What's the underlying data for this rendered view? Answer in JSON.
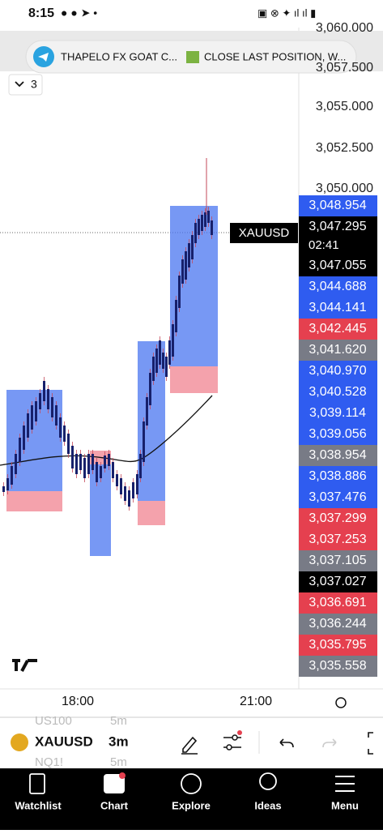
{
  "status_bar": {
    "time": "8:15"
  },
  "notification": {
    "sender": "THAPELO FX GOAT C...",
    "message": "CLOSE LAST POSITION, W..."
  },
  "indicator_toggle": {
    "count": "3"
  },
  "price_axis": {
    "labels": [
      "3,060.000",
      "3,057.500",
      "3,055.000",
      "3,052.500",
      "3,050.000"
    ]
  },
  "symbol_label": "XAUUSD",
  "countdown": "02:41",
  "price_tags": [
    {
      "label": "3,048.954",
      "color": "#2f5cf0"
    },
    {
      "label": "3,047.295",
      "color": "#000000"
    },
    {
      "label": "3,047.055",
      "color": "#000000"
    },
    {
      "label": "3,044.688",
      "color": "#2f5cf0"
    },
    {
      "label": "3,044.141",
      "color": "#2f5cf0"
    },
    {
      "label": "3,042.445",
      "color": "#e5404f"
    },
    {
      "label": "3,041.620",
      "color": "#787b86"
    },
    {
      "label": "3,040.970",
      "color": "#2f5cf0"
    },
    {
      "label": "3,040.528",
      "color": "#2f5cf0"
    },
    {
      "label": "3,039.114",
      "color": "#2f5cf0"
    },
    {
      "label": "3,039.056",
      "color": "#2f5cf0"
    },
    {
      "label": "3,038.954",
      "color": "#787b86"
    },
    {
      "label": "3,038.886",
      "color": "#2f5cf0"
    },
    {
      "label": "3,037.476",
      "color": "#2f5cf0"
    },
    {
      "label": "3,037.299",
      "color": "#e5404f"
    },
    {
      "label": "3,037.253",
      "color": "#e5404f"
    },
    {
      "label": "3,037.105",
      "color": "#787b86"
    },
    {
      "label": "3,037.027",
      "color": "#000000"
    },
    {
      "label": "3,036.691",
      "color": "#e5404f"
    },
    {
      "label": "3,036.244",
      "color": "#787b86"
    },
    {
      "label": "3,035.795",
      "color": "#e5404f"
    },
    {
      "label": "3,035.558",
      "color": "#787b86"
    }
  ],
  "time_axis": {
    "labels": [
      "18:00",
      "21:00"
    ]
  },
  "toolbar": {
    "symbol": "XAUUSD",
    "interval": "3m",
    "scroll_above": [
      "US100",
      "5m"
    ],
    "scroll_below": [
      "NQ1!",
      "5m"
    ]
  },
  "nav": [
    "Watchlist",
    "Chart",
    "Explore",
    "Ideas",
    "Menu"
  ]
}
